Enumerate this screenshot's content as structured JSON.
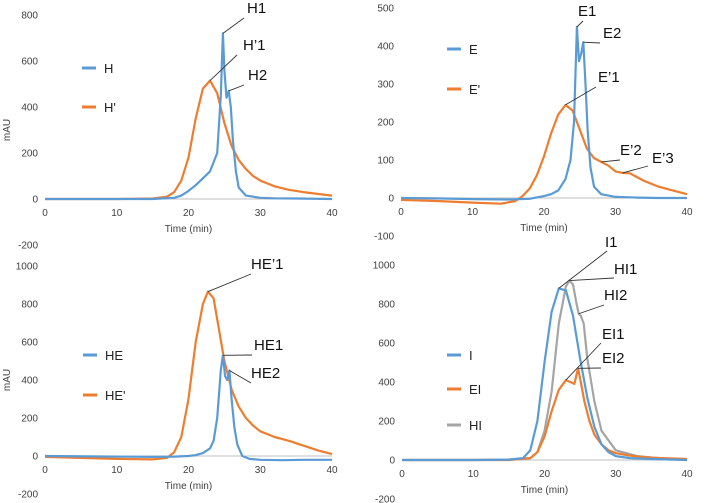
{
  "colors": {
    "blue": "#5b9bd5",
    "orange": "#ed7d31",
    "gray": "#a5a5a5",
    "axis": "#bfbfbf",
    "leader": "#333333"
  },
  "chart_data": [
    {
      "id": "top-left",
      "type": "line",
      "ylabel": "mAU",
      "xlabel": "Time (min)",
      "xlim": [
        0,
        40
      ],
      "ylim": [
        -200,
        800
      ],
      "xticks": [
        0,
        10,
        20,
        30,
        40
      ],
      "yticks": [
        -200,
        0,
        200,
        400,
        600,
        800
      ],
      "legend": [
        {
          "name": "H",
          "color": "#5b9bd5"
        },
        {
          "name": "H'",
          "color": "#ed7d31"
        }
      ],
      "series": [
        {
          "name": "H",
          "color": "#5b9bd5",
          "x": [
            0,
            10,
            15,
            18,
            19,
            20,
            21,
            22,
            23,
            24,
            24.5,
            24.8,
            25.0,
            25.3,
            25.6,
            25.9,
            26.2,
            26.6,
            27,
            28,
            30,
            32,
            35,
            40
          ],
          "y": [
            0,
            0,
            0,
            5,
            15,
            35,
            60,
            90,
            120,
            200,
            450,
            720,
            560,
            440,
            470,
            400,
            250,
            120,
            50,
            15,
            5,
            3,
            2,
            0
          ]
        },
        {
          "name": "H'",
          "color": "#ed7d31",
          "x": [
            0,
            10,
            15,
            17,
            18,
            19,
            20,
            21,
            22,
            23,
            24,
            25,
            26,
            27,
            28,
            29,
            30,
            32,
            34,
            36,
            38,
            40
          ],
          "y": [
            0,
            0,
            2,
            10,
            30,
            80,
            180,
            350,
            480,
            515,
            460,
            330,
            230,
            170,
            130,
            100,
            80,
            55,
            40,
            30,
            22,
            15
          ]
        }
      ],
      "annotations": [
        {
          "label": "H1",
          "x": 24.8,
          "y": 720
        },
        {
          "label": "H’1",
          "x": 23,
          "y": 515
        },
        {
          "label": "H2",
          "x": 25.6,
          "y": 470
        }
      ]
    },
    {
      "id": "top-right",
      "type": "line",
      "ylabel": "",
      "xlabel": "Time (min)",
      "xlim": [
        0,
        40
      ],
      "ylim": [
        -100,
        500
      ],
      "xticks": [
        0,
        10,
        20,
        30,
        40
      ],
      "yticks": [
        -100,
        0,
        100,
        200,
        300,
        400,
        500
      ],
      "legend": [
        {
          "name": "E",
          "color": "#5b9bd5"
        },
        {
          "name": "E'",
          "color": "#ed7d31"
        }
      ],
      "series": [
        {
          "name": "E",
          "color": "#5b9bd5",
          "x": [
            0,
            5,
            10,
            15,
            18,
            20,
            21,
            22,
            23,
            23.7,
            24.2,
            24.6,
            24.9,
            25.2,
            25.5,
            25.8,
            26.1,
            26.5,
            27,
            28,
            30,
            33,
            36,
            40
          ],
          "y": [
            0,
            -1,
            -3,
            -4,
            -2,
            5,
            10,
            20,
            50,
            100,
            200,
            450,
            360,
            380,
            410,
            300,
            180,
            80,
            30,
            10,
            3,
            1,
            0,
            0
          ]
        },
        {
          "name": "E'",
          "color": "#ed7d31",
          "x": [
            0,
            5,
            10,
            14,
            16,
            17,
            18,
            19,
            20,
            21,
            22,
            23,
            24,
            25,
            26,
            27,
            28,
            29,
            30,
            31,
            32,
            33,
            34,
            36,
            38,
            40
          ],
          "y": [
            -5,
            -8,
            -12,
            -15,
            -8,
            5,
            25,
            60,
            110,
            170,
            220,
            245,
            230,
            180,
            130,
            105,
            95,
            85,
            70,
            66,
            65,
            55,
            45,
            30,
            20,
            10
          ]
        }
      ],
      "annotations": [
        {
          "label": "E1",
          "x": 24.6,
          "y": 450
        },
        {
          "label": "E2",
          "x": 25.5,
          "y": 410
        },
        {
          "label": "E’1",
          "x": 23,
          "y": 245
        },
        {
          "label": "E’2",
          "x": 28,
          "y": 95
        },
        {
          "label": "E’3",
          "x": 31,
          "y": 66
        }
      ]
    },
    {
      "id": "bottom-left",
      "type": "line",
      "ylabel": "mAU",
      "xlabel": "Time (min)",
      "xlim": [
        0,
        40
      ],
      "ylim": [
        -200,
        1000
      ],
      "xticks": [
        0,
        10,
        20,
        30,
        40
      ],
      "yticks": [
        -200,
        0,
        200,
        400,
        600,
        800,
        1000
      ],
      "legend": [
        {
          "name": "HE",
          "color": "#5b9bd5"
        },
        {
          "name": "HE'",
          "color": "#ed7d31"
        }
      ],
      "series": [
        {
          "name": "HE",
          "color": "#5b9bd5",
          "x": [
            0,
            10,
            15,
            18,
            20,
            21,
            22,
            23,
            23.5,
            24,
            24.5,
            24.8,
            25.1,
            25.4,
            25.7,
            26,
            26.4,
            26.8,
            27.5,
            28.5,
            30,
            33,
            36,
            40
          ],
          "y": [
            0,
            -3,
            -5,
            -3,
            0,
            5,
            15,
            40,
            80,
            200,
            450,
            530,
            420,
            400,
            450,
            300,
            150,
            60,
            0,
            -15,
            -20,
            -22,
            -20,
            -20
          ]
        },
        {
          "name": "HE'",
          "color": "#ed7d31",
          "x": [
            0,
            5,
            10,
            15,
            17,
            18,
            19,
            20,
            21,
            22,
            22.7,
            23.5,
            24,
            25,
            26,
            27,
            28,
            29,
            30,
            32,
            34,
            36,
            38,
            40
          ],
          "y": [
            -5,
            -10,
            -15,
            -18,
            -10,
            20,
            100,
            300,
            600,
            800,
            865,
            830,
            720,
            500,
            350,
            260,
            200,
            160,
            130,
            100,
            80,
            55,
            30,
            10
          ]
        }
      ],
      "annotations": [
        {
          "label": "HE’1",
          "x": 22.7,
          "y": 865
        },
        {
          "label": "HE1",
          "x": 24.8,
          "y": 530
        },
        {
          "label": "HE2",
          "x": 25.7,
          "y": 450
        }
      ]
    },
    {
      "id": "bottom-right",
      "type": "line",
      "ylabel": "",
      "xlabel": "Time (min)",
      "xlim": [
        0,
        40
      ],
      "ylim": [
        -200,
        1000
      ],
      "xticks": [
        0,
        10,
        20,
        30,
        40
      ],
      "yticks": [
        -200,
        0,
        200,
        400,
        600,
        800,
        1000
      ],
      "legend": [
        {
          "name": "I",
          "color": "#5b9bd5"
        },
        {
          "name": "EI",
          "color": "#ed7d31"
        },
        {
          "name": "HI",
          "color": "#a5a5a5"
        }
      ],
      "series": [
        {
          "name": "I",
          "color": "#5b9bd5",
          "x": [
            0,
            10,
            15,
            17,
            18,
            19,
            20,
            21,
            22,
            23,
            24,
            25,
            26,
            27,
            28,
            29,
            30,
            32,
            35,
            40
          ],
          "y": [
            0,
            0,
            2,
            10,
            50,
            200,
            500,
            760,
            880,
            870,
            740,
            520,
            320,
            170,
            80,
            40,
            20,
            10,
            5,
            0
          ]
        },
        {
          "name": "EI",
          "color": "#ed7d31",
          "x": [
            0,
            10,
            15,
            18,
            19,
            20,
            21,
            22,
            23,
            23.6,
            24.2,
            24.7,
            25.1,
            25.6,
            26.3,
            27,
            28,
            29,
            30,
            32,
            35,
            40
          ],
          "y": [
            0,
            0,
            0,
            10,
            40,
            120,
            250,
            360,
            410,
            400,
            390,
            470,
            400,
            300,
            200,
            130,
            80,
            50,
            35,
            22,
            12,
            5
          ]
        },
        {
          "name": "HI",
          "color": "#a5a5a5",
          "x": [
            0,
            10,
            15,
            18,
            19,
            20,
            21,
            22,
            23,
            23.5,
            24,
            24.5,
            24.8,
            25.1,
            25.5,
            26,
            27,
            28,
            30,
            33,
            36,
            40
          ],
          "y": [
            0,
            0,
            2,
            10,
            40,
            150,
            350,
            700,
            890,
            920,
            900,
            800,
            750,
            740,
            700,
            520,
            300,
            150,
            50,
            20,
            10,
            0
          ]
        }
      ],
      "annotations": [
        {
          "label": "I1",
          "x": 22,
          "y": 880
        },
        {
          "label": "HI1",
          "x": 23.5,
          "y": 920
        },
        {
          "label": "HI2",
          "x": 24.8,
          "y": 750
        },
        {
          "label": "EI1",
          "x": 23,
          "y": 410
        },
        {
          "label": "EI2",
          "x": 24.7,
          "y": 470
        }
      ]
    }
  ]
}
